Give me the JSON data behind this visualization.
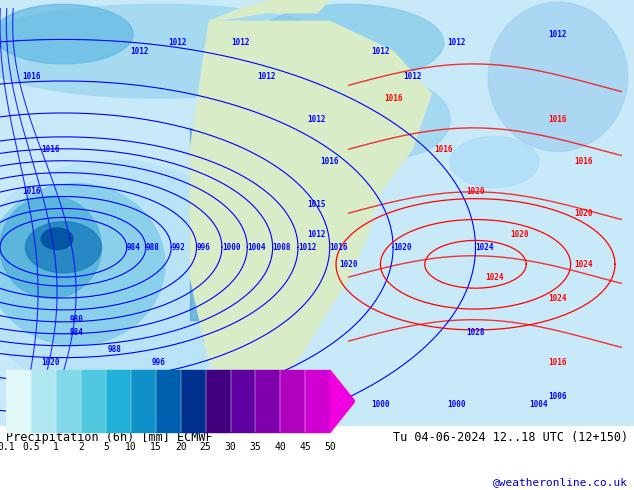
{
  "title_left": "Precipitation (6h) [mm] ECMWF",
  "title_right": "Tu 04-06-2024 12..18 UTC (12+150)",
  "credit": "@weatheronline.co.uk",
  "colorbar_values": [
    0.1,
    0.5,
    1,
    2,
    5,
    10,
    15,
    20,
    25,
    30,
    35,
    40,
    45,
    50
  ],
  "colorbar_colors": [
    "#e0f8f8",
    "#b0e8f0",
    "#80d8e8",
    "#50c8e0",
    "#20b0d8",
    "#1090c8",
    "#0060b0",
    "#003090",
    "#400080",
    "#6000a0",
    "#8000b0",
    "#b000c0",
    "#d000d0",
    "#f000e0"
  ],
  "map_bg_color": "#c8e8f8",
  "land_color": "#e8f4e8",
  "fig_bg_color": "#ffffff",
  "bottom_bar_color": "#ffffff",
  "label_fontsize": 9,
  "credit_color": "#0000cc",
  "map_image_placeholder": true
}
